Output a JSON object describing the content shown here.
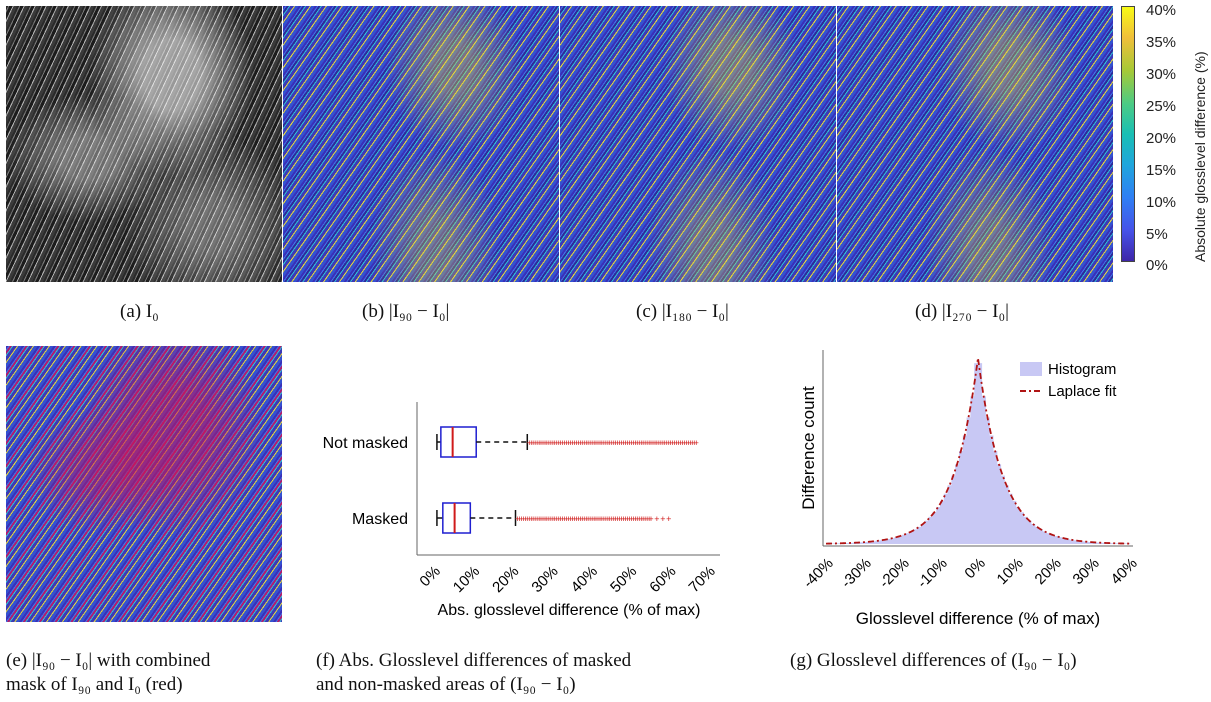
{
  "colorbar": {
    "label": "Absolute glosslevel difference (%)",
    "ticks": [
      "40%",
      "35%",
      "30%",
      "25%",
      "20%",
      "15%",
      "10%",
      "5%",
      "0%"
    ],
    "colormap": [
      "#3e26a8",
      "#2f7ff4",
      "#19bfb4",
      "#a6c936",
      "#f9fb15"
    ]
  },
  "captions": {
    "a": "(a) I₀",
    "b": "(b) |I₉₀ − I₀|",
    "c": "(c) |I₁₈₀ − I₀|",
    "d": "(d) |I₂₇₀ − I₀|",
    "e_line1": "(e) |I₉₀ − I₀| with combined",
    "e_line2": "mask of I₉₀ and I₀ (red)",
    "f_line1": "(f) Abs. Glosslevel differences of masked",
    "f_line2": "and non-masked areas of (I₉₀ − I₀)",
    "g": "(g) Glosslevel differences of (I₉₀ − I₀)"
  },
  "chart_data": [
    {
      "type": "box",
      "categories": [
        "Not masked",
        "Masked"
      ],
      "xlabel": "Abs. glosslevel difference (% of max)",
      "xlim": [
        0,
        70
      ],
      "xticks": [
        "0%",
        "10%",
        "20%",
        "30%",
        "40%",
        "50%",
        "60%",
        "70%"
      ],
      "series": [
        {
          "name": "Not masked",
          "whisker_low": 1,
          "q1": 2,
          "median": 5,
          "q3": 11,
          "whisker_high": 24,
          "outliers_range": [
            24,
            67
          ]
        },
        {
          "name": "Masked",
          "whisker_low": 1,
          "q1": 2.5,
          "median": 5.5,
          "q3": 9.5,
          "whisker_high": 21,
          "outliers_range": [
            21,
            61
          ]
        }
      ],
      "box_color": "#1f1fd0",
      "median_color": "#d01a1a"
    },
    {
      "type": "area",
      "xlabel": "Glosslevel difference (% of max)",
      "ylabel": "Difference count",
      "xlim": [
        -40,
        40
      ],
      "xticks": [
        "-40%",
        "-30%",
        "-20%",
        "-10%",
        "0%",
        "10%",
        "20%",
        "30%",
        "40%"
      ],
      "legend": [
        "Histogram",
        "Laplace fit"
      ],
      "legend_position": "top-right",
      "fit": {
        "name": "Laplace fit",
        "location": 0,
        "scale": 6.5
      },
      "histogram_color": "#c8c8f4",
      "fit_color": "#b01414"
    }
  ]
}
